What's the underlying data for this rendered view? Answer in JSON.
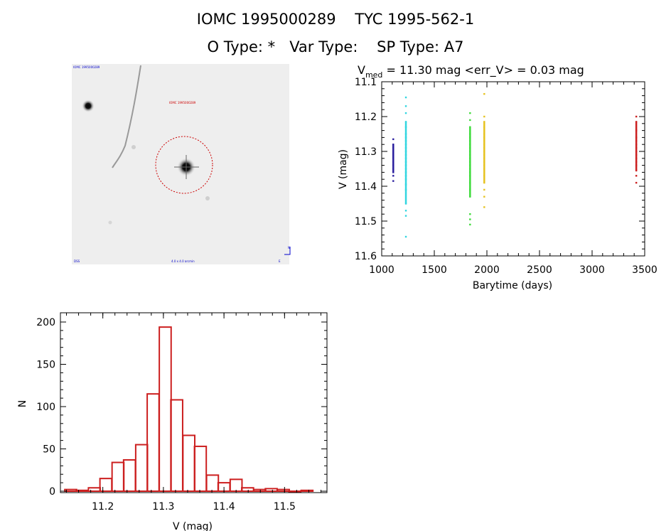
{
  "header": {
    "line1": "IOMC 1995000289    TYC 1995-562-1",
    "line2": "O Type: *   Var Type:    SP Type: A7"
  },
  "sky_image": {
    "label_top_left": "IOMC 1995000289",
    "label_target": "IOMC 1995000289",
    "label_bottom_left": "DSS",
    "label_bottom_center": "4.0 x 4.0 arcmin",
    "label_bottom_right": "E",
    "label_compass_n": "N"
  },
  "chart_data": [
    {
      "type": "scatter",
      "title_prefix": "V",
      "title_subscript": "med",
      "title_rest": " = 11.30 mag <err_V> = 0.03 mag",
      "xlabel": "Barytime (days)",
      "ylabel": "V (mag)",
      "xlim": [
        1000,
        3500
      ],
      "ylim": [
        11.6,
        11.1
      ],
      "xticks": [
        "1000",
        "1500",
        "2000",
        "2500",
        "3000",
        "3500"
      ],
      "yticks": [
        "11.1",
        "11.2",
        "11.3",
        "11.4",
        "11.5",
        "11.6"
      ],
      "series": [
        {
          "name": "season1",
          "color": "#2b1f9e",
          "x": 1110,
          "points": [
            11.265,
            11.28,
            11.29,
            11.3,
            11.305,
            11.31,
            11.315,
            11.32,
            11.33,
            11.34,
            11.35,
            11.36,
            11.37,
            11.385
          ]
        },
        {
          "name": "season2",
          "color": "#33d6e0",
          "x": 1230,
          "points": [
            11.145,
            11.17,
            11.19,
            11.215,
            11.23,
            11.25,
            11.26,
            11.27,
            11.28,
            11.29,
            11.3,
            11.31,
            11.32,
            11.33,
            11.34,
            11.35,
            11.36,
            11.37,
            11.38,
            11.395,
            11.41,
            11.45,
            11.47,
            11.485,
            11.545
          ]
        },
        {
          "name": "season3",
          "color": "#3ddb3a",
          "x": 1840,
          "points": [
            11.19,
            11.21,
            11.23,
            11.25,
            11.26,
            11.27,
            11.28,
            11.29,
            11.3,
            11.31,
            11.32,
            11.33,
            11.34,
            11.35,
            11.36,
            11.37,
            11.39,
            11.41,
            11.43,
            11.48,
            11.495,
            11.51
          ]
        },
        {
          "name": "season4",
          "color": "#e6c21f",
          "x": 1975,
          "points": [
            11.135,
            11.2,
            11.215,
            11.23,
            11.25,
            11.26,
            11.27,
            11.28,
            11.29,
            11.3,
            11.31,
            11.32,
            11.33,
            11.34,
            11.35,
            11.37,
            11.39,
            11.41,
            11.43,
            11.46
          ]
        },
        {
          "name": "season5",
          "color": "#cc1f1f",
          "x": 3420,
          "points": [
            11.2,
            11.215,
            11.24,
            11.26,
            11.27,
            11.28,
            11.29,
            11.3,
            11.31,
            11.32,
            11.33,
            11.34,
            11.355,
            11.37,
            11.39
          ]
        }
      ]
    },
    {
      "type": "bar",
      "subtype": "histogram",
      "xlabel": "V (mag)",
      "ylabel": "N",
      "xlim": [
        11.13,
        11.57
      ],
      "ylim": [
        0,
        205
      ],
      "xticks": [
        "11.2",
        "11.3",
        "11.4",
        "11.5"
      ],
      "yticks": [
        "0",
        "50",
        "100",
        "150",
        "200"
      ],
      "bin_width": 0.0195,
      "bar_color": "#cc1f1f",
      "bins": [
        {
          "center": 11.147,
          "count": 2
        },
        {
          "center": 11.166,
          "count": 1
        },
        {
          "center": 11.186,
          "count": 4
        },
        {
          "center": 11.205,
          "count": 15
        },
        {
          "center": 11.225,
          "count": 34
        },
        {
          "center": 11.244,
          "count": 37
        },
        {
          "center": 11.264,
          "count": 55
        },
        {
          "center": 11.283,
          "count": 115
        },
        {
          "center": 11.303,
          "count": 194
        },
        {
          "center": 11.322,
          "count": 108
        },
        {
          "center": 11.342,
          "count": 66
        },
        {
          "center": 11.361,
          "count": 53
        },
        {
          "center": 11.381,
          "count": 19
        },
        {
          "center": 11.4,
          "count": 10
        },
        {
          "center": 11.42,
          "count": 14
        },
        {
          "center": 11.439,
          "count": 4
        },
        {
          "center": 11.459,
          "count": 2
        },
        {
          "center": 11.478,
          "count": 3
        },
        {
          "center": 11.498,
          "count": 2
        },
        {
          "center": 11.517,
          "count": 0
        },
        {
          "center": 11.537,
          "count": 1
        }
      ]
    }
  ]
}
